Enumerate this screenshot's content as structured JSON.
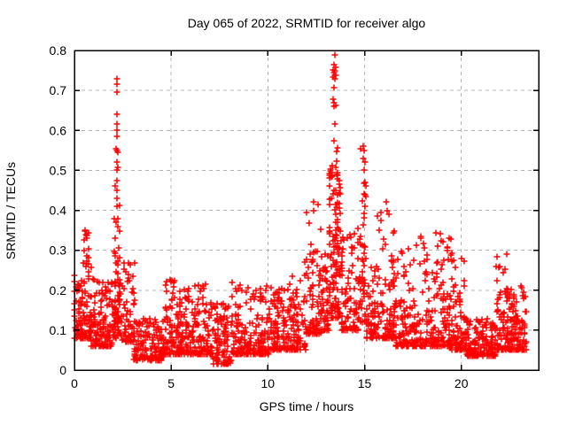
{
  "window": {
    "background": "#ffffff"
  },
  "chart_data": {
    "type": "scatter",
    "title": "Day 065 of 2022, SRMTID for receiver algo",
    "xlabel": "GPS time / hours",
    "ylabel": "SRMTID / TECUs",
    "xlim": [
      0,
      24
    ],
    "ylim": [
      0,
      0.8
    ],
    "xticks": [
      0,
      5,
      10,
      15,
      20
    ],
    "xtick_labels": [
      "0",
      "5",
      "10",
      "15",
      "20"
    ],
    "yticks": [
      0,
      0.1,
      0.2,
      0.3,
      0.4,
      0.5,
      0.6,
      0.7,
      0.8
    ],
    "ytick_labels": [
      "0",
      "0.1",
      "0.2",
      "0.3",
      "0.4",
      "0.5",
      "0.6",
      "0.7",
      "0.8"
    ],
    "grid": {
      "visible": true,
      "style": "dashed",
      "color": "#b4b4b4"
    },
    "legend": "none",
    "axis_color": "#000000",
    "marker": {
      "glyph": "plus",
      "color": "#ff0000",
      "size": 7,
      "stroke_width": 1.5
    },
    "description": "Dense scatter of SRMTID values vs GPS hour; baseline ~0.05-0.2 TECUs with large spikes near 2.2 h (to 0.73), 13.5 h (to 0.79) and 15.0 h (to 0.56), moderate peaks 0.3-0.42 near 0.6, 12.4, 16-19.2 and 22 h, quiet dips near 3-4.5 h and 20.3-21.8 h",
    "outlier_points": [
      [
        2.18,
        0.73
      ],
      [
        2.21,
        0.715
      ],
      [
        2.19,
        0.695
      ],
      [
        2.2,
        0.64
      ],
      [
        2.18,
        0.615
      ],
      [
        2.22,
        0.6
      ],
      [
        2.2,
        0.585
      ],
      [
        2.17,
        0.555
      ],
      [
        2.2,
        0.55
      ],
      [
        2.23,
        0.545
      ],
      [
        2.19,
        0.52
      ],
      [
        2.21,
        0.5
      ],
      [
        2.2,
        0.475
      ],
      [
        2.18,
        0.45
      ],
      [
        2.21,
        0.43
      ],
      [
        2.19,
        0.41
      ],
      [
        13.45,
        0.79
      ],
      [
        13.43,
        0.765
      ],
      [
        13.47,
        0.75
      ],
      [
        13.44,
        0.745
      ],
      [
        13.46,
        0.73
      ],
      [
        13.41,
        0.67
      ],
      [
        13.44,
        0.66
      ],
      [
        13.46,
        0.615
      ],
      [
        13.43,
        0.575
      ],
      [
        14.95,
        0.56
      ],
      [
        14.98,
        0.55
      ],
      [
        14.93,
        0.53
      ],
      [
        14.96,
        0.5
      ],
      [
        15.0,
        0.52
      ],
      [
        15.02,
        0.47
      ],
      [
        14.97,
        0.44
      ],
      [
        15.0,
        0.41
      ],
      [
        0.55,
        0.35
      ],
      [
        0.58,
        0.34
      ],
      [
        0.62,
        0.33
      ],
      [
        0.52,
        0.3
      ],
      [
        12.35,
        0.42
      ],
      [
        12.38,
        0.4
      ],
      [
        16.1,
        0.42
      ],
      [
        16.15,
        0.4
      ]
    ],
    "scatter_spec": {
      "seed": 42,
      "column_snap": 0.08,
      "segments": [
        {
          "t0": 0.0,
          "t1": 0.45,
          "n": 60,
          "lo": 0.08,
          "hi": 0.24,
          "k": 1.8
        },
        {
          "t0": 0.35,
          "t1": 0.85,
          "n": 70,
          "lo": 0.08,
          "hi": 0.36,
          "k": 2.6
        },
        {
          "t0": 0.85,
          "t1": 1.95,
          "n": 130,
          "lo": 0.06,
          "hi": 0.23,
          "k": 2.4
        },
        {
          "t0": 2.05,
          "t1": 2.35,
          "n": 45,
          "lo": 0.12,
          "hi": 0.55,
          "k": 2.4
        },
        {
          "t0": 1.95,
          "t1": 2.5,
          "n": 45,
          "lo": 0.08,
          "hi": 0.22,
          "k": 1.8
        },
        {
          "t0": 2.5,
          "t1": 3.1,
          "n": 65,
          "lo": 0.07,
          "hi": 0.28,
          "k": 2.4
        },
        {
          "t0": 3.05,
          "t1": 4.6,
          "n": 150,
          "lo": 0.025,
          "hi": 0.13,
          "k": 1.8
        },
        {
          "t0": 4.6,
          "t1": 5.35,
          "n": 85,
          "lo": 0.04,
          "hi": 0.23,
          "k": 2.6
        },
        {
          "t0": 5.35,
          "t1": 6.15,
          "n": 90,
          "lo": 0.04,
          "hi": 0.21,
          "k": 2.4
        },
        {
          "t0": 6.15,
          "t1": 7.15,
          "n": 100,
          "lo": 0.04,
          "hi": 0.22,
          "k": 2.6
        },
        {
          "t0": 7.15,
          "t1": 8.1,
          "n": 95,
          "lo": 0.015,
          "hi": 0.17,
          "k": 2.0
        },
        {
          "t0": 8.1,
          "t1": 9.05,
          "n": 95,
          "lo": 0.04,
          "hi": 0.22,
          "k": 2.6
        },
        {
          "t0": 9.05,
          "t1": 10.05,
          "n": 100,
          "lo": 0.04,
          "hi": 0.22,
          "k": 2.4
        },
        {
          "t0": 10.05,
          "t1": 11.1,
          "n": 105,
          "lo": 0.05,
          "hi": 0.21,
          "k": 2.2
        },
        {
          "t0": 11.1,
          "t1": 11.95,
          "n": 90,
          "lo": 0.05,
          "hi": 0.24,
          "k": 2.2
        },
        {
          "t0": 11.95,
          "t1": 12.7,
          "n": 90,
          "lo": 0.09,
          "hi": 0.42,
          "k": 2.8
        },
        {
          "t0": 12.7,
          "t1": 13.15,
          "n": 55,
          "lo": 0.1,
          "hi": 0.3,
          "k": 2.0
        },
        {
          "t0": 13.15,
          "t1": 13.8,
          "n": 110,
          "lo": 0.13,
          "hi": 0.52,
          "k": 1.7
        },
        {
          "t0": 13.35,
          "t1": 13.6,
          "n": 25,
          "lo": 0.3,
          "hi": 0.76,
          "k": 2.0
        },
        {
          "t0": 13.8,
          "t1": 14.7,
          "n": 90,
          "lo": 0.1,
          "hi": 0.36,
          "k": 2.2
        },
        {
          "t0": 14.75,
          "t1": 15.1,
          "n": 45,
          "lo": 0.12,
          "hi": 0.56,
          "k": 2.0
        },
        {
          "t0": 15.1,
          "t1": 15.6,
          "n": 55,
          "lo": 0.08,
          "hi": 0.26,
          "k": 2.0
        },
        {
          "t0": 15.6,
          "t1": 16.6,
          "n": 115,
          "lo": 0.08,
          "hi": 0.42,
          "k": 2.4
        },
        {
          "t0": 16.6,
          "t1": 17.4,
          "n": 80,
          "lo": 0.06,
          "hi": 0.31,
          "k": 2.4
        },
        {
          "t0": 17.4,
          "t1": 18.6,
          "n": 115,
          "lo": 0.06,
          "hi": 0.34,
          "k": 2.6
        },
        {
          "t0": 18.6,
          "t1": 19.45,
          "n": 95,
          "lo": 0.06,
          "hi": 0.35,
          "k": 2.6
        },
        {
          "t0": 19.45,
          "t1": 20.2,
          "n": 85,
          "lo": 0.05,
          "hi": 0.3,
          "k": 2.2
        },
        {
          "t0": 20.2,
          "t1": 21.8,
          "n": 160,
          "lo": 0.035,
          "hi": 0.13,
          "k": 1.8
        },
        {
          "t0": 21.8,
          "t1": 22.35,
          "n": 65,
          "lo": 0.05,
          "hi": 0.3,
          "k": 2.8
        },
        {
          "t0": 22.35,
          "t1": 23.35,
          "n": 130,
          "lo": 0.05,
          "hi": 0.21,
          "k": 2.2
        }
      ]
    }
  }
}
